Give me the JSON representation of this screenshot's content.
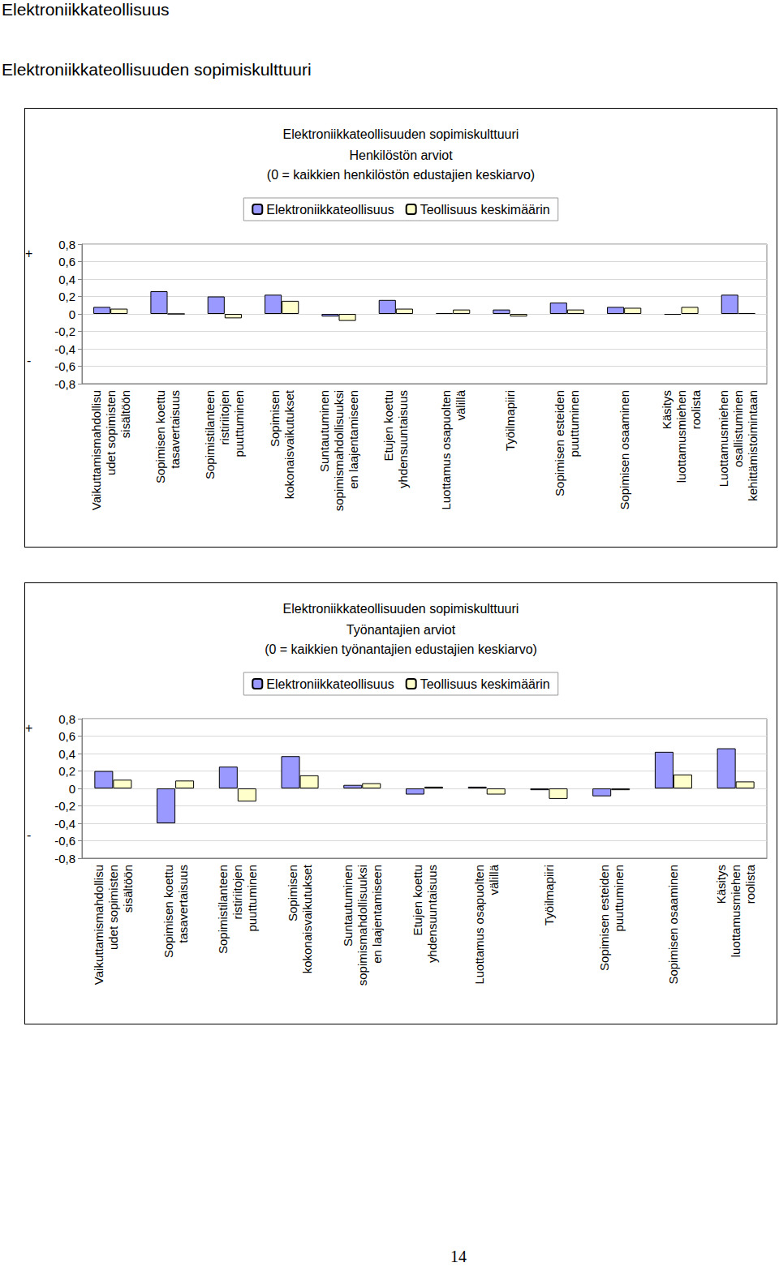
{
  "header": {
    "title": "Elektroniikkateollisuus",
    "subtitle": "Elektroniikkateollisuuden sopimiskulttuuri"
  },
  "chart_data": [
    {
      "type": "bar",
      "title": "Elektroniikkateollisuuden sopimiskulttuuri",
      "subtitle": "Henkilöstön arviot\n(0 = kaikkien henkilöstön edustajien keskiarvo)",
      "categories": [
        "Vaikuttamismahdollisu\nudet sopimisten\nsisältöön",
        "Sopimisen koettu\ntasavertaisuus",
        "Sopimistilanteen\nristiriitojen\npuuttuminen",
        "Sopimisen\nkokonaisvaikutukset",
        "Suntautuminen\nsopimismahdollisuuksi\nen laajentamiseen",
        "Etujen koettu\nyhdensuuntaisuus",
        "Luottamus osapuolten\nvälillä",
        "Työilmapiiri",
        "Sopimisen esteiden\npuuttuminen",
        "Sopimisen osaaminen",
        "Käsitys\nluottamusmiehen\nroolista",
        "Luottamusmiehen\nosallistuminen\nkehittämistoimintaan"
      ],
      "series": [
        {
          "name": "Elektroniikkateollisuus",
          "color": "#9999ff",
          "values": [
            0.08,
            0.26,
            0.2,
            0.22,
            -0.03,
            0.16,
            0.01,
            0.05,
            0.13,
            0.08,
            -0.01,
            0.22
          ]
        },
        {
          "name": "Teollisuus keskimäärin",
          "color": "#ffffcc",
          "values": [
            0.06,
            0.0,
            -0.05,
            0.15,
            -0.08,
            0.06,
            0.05,
            -0.03,
            0.05,
            0.07,
            0.08,
            0.01
          ]
        }
      ],
      "ylim": [
        -0.8,
        0.8
      ],
      "yticks": [
        {
          "value": -0.8,
          "label": "-0,8"
        },
        {
          "value": -0.6,
          "label": "-0,6"
        },
        {
          "value": -0.4,
          "label": "-0,4"
        },
        {
          "value": -0.2,
          "label": "-0,2"
        },
        0,
        {
          "value": 0.2,
          "label": "0,2"
        },
        {
          "value": 0.4,
          "label": "0,4"
        },
        {
          "value": 0.6,
          "label": "0,6"
        },
        {
          "value": 0.8,
          "label": "0,8"
        }
      ],
      "annotations": [
        "+",
        "-"
      ],
      "grid": true,
      "legend": "top"
    },
    {
      "type": "bar",
      "title": "Elektroniikkateollisuuden sopimiskulttuuri",
      "subtitle": "Työnantajien arviot\n(0 = kaikkien työnantajien edustajien keskiarvo)",
      "categories": [
        "Vaikuttamismahdollisu\nudet sopimisten\nsisältöön",
        "Sopimisen koettu\ntasavertaisuus",
        "Sopimistilanteen\nristiriitojen\npuuttuminen",
        "Sopimisen\nkokonaisvaikutukset",
        "Suntautuminen\nsopimismahdollisuuksi\nen laajentamiseen",
        "Etujen koettu\nyhdensuuntaisuus",
        "Luottamus osapuolten\nvälillä",
        "Työilmapiiri",
        "Sopimisen esteiden\npuuttuminen",
        "Sopimisen osaaminen",
        "Käsitys\nluottamusmiehen\nroolista"
      ],
      "series": [
        {
          "name": "Elektroniikkateollisuus",
          "color": "#9999ff",
          "values": [
            0.2,
            -0.4,
            0.25,
            0.37,
            0.04,
            -0.07,
            0.02,
            -0.02,
            -0.09,
            0.42,
            0.46
          ]
        },
        {
          "name": "Teollisuus keskimäärin",
          "color": "#ffffcc",
          "values": [
            0.1,
            0.09,
            -0.15,
            0.15,
            0.06,
            0.02,
            -0.07,
            -0.12,
            -0.02,
            0.16,
            0.08
          ]
        }
      ],
      "ylim": [
        -0.8,
        0.8
      ],
      "yticks": [
        {
          "value": -0.8,
          "label": "-0,8"
        },
        {
          "value": -0.6,
          "label": "-0,6"
        },
        {
          "value": -0.4,
          "label": "-0,4"
        },
        {
          "value": -0.2,
          "label": "-0,2"
        },
        0,
        {
          "value": 0.2,
          "label": "0,2"
        },
        {
          "value": 0.4,
          "label": "0,4"
        },
        {
          "value": 0.6,
          "label": "0,6"
        },
        {
          "value": 0.8,
          "label": "0,8"
        }
      ],
      "annotations": [
        "+",
        "-"
      ],
      "grid": true,
      "legend": "top"
    }
  ],
  "page_number": "14"
}
